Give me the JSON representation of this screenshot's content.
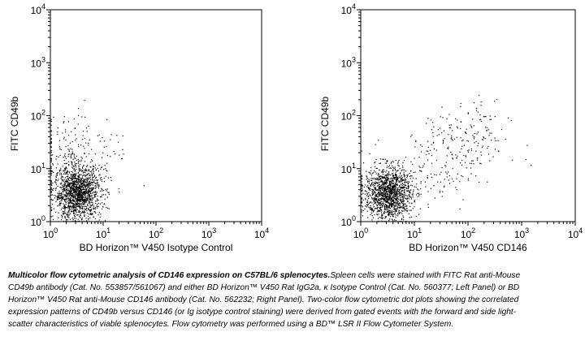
{
  "chart_data": [
    {
      "type": "scatter",
      "panel": "left",
      "xlabel": "BD Horizon™ V450 Isotype Control",
      "ylabel": "FITC CD49b",
      "x_scale": "log",
      "y_scale": "log",
      "xlim": [
        1,
        10000
      ],
      "ylim": [
        1,
        10000
      ],
      "x_ticks": [
        {
          "base": "10",
          "exp": "0",
          "value": 1
        },
        {
          "base": "10",
          "exp": "1",
          "value": 10
        },
        {
          "base": "10",
          "exp": "2",
          "value": 100
        },
        {
          "base": "10",
          "exp": "3",
          "value": 1000
        },
        {
          "base": "10",
          "exp": "4",
          "value": 10000
        }
      ],
      "y_ticks": [
        {
          "base": "10",
          "exp": "0",
          "value": 1
        },
        {
          "base": "10",
          "exp": "1",
          "value": 10
        },
        {
          "base": "10",
          "exp": "2",
          "value": 100
        },
        {
          "base": "10",
          "exp": "3",
          "value": 1000
        },
        {
          "base": "10",
          "exp": "4",
          "value": 10000
        }
      ],
      "grid": false,
      "populations": [
        {
          "description": "dense main cluster (CD146- CD49b-)",
          "x_center": 3.2,
          "y_center": 3.5,
          "count": 1500
        },
        {
          "description": "CD49b+ cells, isotype negative",
          "x_center": 3,
          "y_center": 25,
          "count": 160
        },
        {
          "description": "sparse scattered events",
          "x_center": 6,
          "y_center": 6,
          "count": 40
        }
      ]
    },
    {
      "type": "scatter",
      "panel": "right",
      "xlabel": "BD Horizon™ V450 CD146",
      "ylabel": "FITC CD49b",
      "x_scale": "log",
      "y_scale": "log",
      "xlim": [
        1,
        10000
      ],
      "ylim": [
        1,
        10000
      ],
      "x_ticks": [
        {
          "base": "10",
          "exp": "0",
          "value": 1
        },
        {
          "base": "10",
          "exp": "1",
          "value": 10
        },
        {
          "base": "10",
          "exp": "2",
          "value": 100
        },
        {
          "base": "10",
          "exp": "3",
          "value": 1000
        },
        {
          "base": "10",
          "exp": "4",
          "value": 10000
        }
      ],
      "y_ticks": [
        {
          "base": "10",
          "exp": "0",
          "value": 1
        },
        {
          "base": "10",
          "exp": "1",
          "value": 10
        },
        {
          "base": "10",
          "exp": "2",
          "value": 100
        },
        {
          "base": "10",
          "exp": "3",
          "value": 1000
        },
        {
          "base": "10",
          "exp": "4",
          "value": 10000
        }
      ],
      "grid": false,
      "populations": [
        {
          "description": "dense main cluster (CD146- CD49b-)",
          "x_center": 3.2,
          "y_center": 3.5,
          "count": 1400
        },
        {
          "description": "CD146+ CD49b+ cells",
          "x_center": 90,
          "y_center": 35,
          "count": 170
        },
        {
          "description": "intermediate scattered events",
          "x_center": 20,
          "y_center": 8,
          "count": 120
        }
      ]
    }
  ],
  "caption": {
    "title": "Multicolor flow cytometric analysis of CD146 expression on C57BL/6 splenocytes.",
    "body": "Spleen cells were stained with FITC Rat anti-Mouse CD49b antibody (Cat. No. 553857/561067) and either BD Horizon™ V450 Rat IgG2a, κ Isotype Control (Cat. No. 560377; Left Panel) or BD Horizon™ V450 Rat anti-Mouse CD146 antibody (Cat. No. 562232; Right Panel). Two-color flow cytometric dot plots showing the correlated expression patterns of CD49b versus CD146 (or Ig isotype control staining) were derived from gated events with the forward and side light-scatter characteristics of viable splenocytes. Flow cytometry was performed using a BD™ LSR II Flow Cytometer System."
  }
}
